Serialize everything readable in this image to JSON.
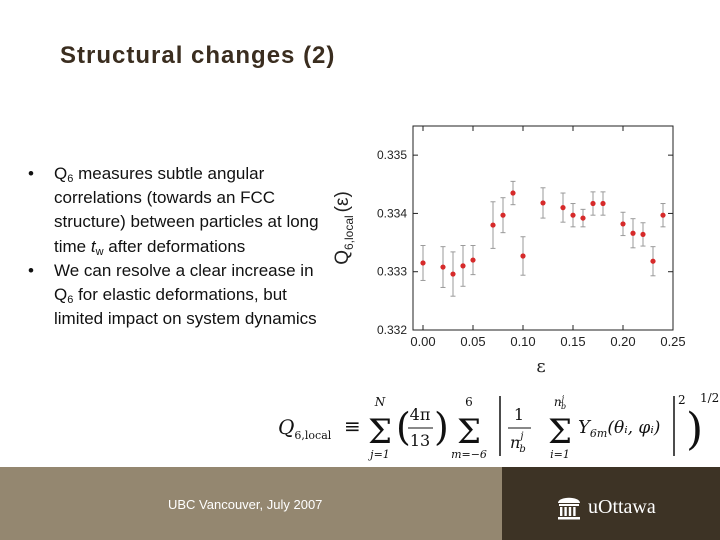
{
  "slide": {
    "title": "Structural changes (2)",
    "bullets": [
      {
        "marker": "•",
        "parts": [
          "Q",
          "6",
          " measures subtle angular correlations (towards an FCC structure) between particles at long time ",
          "t",
          "w",
          " after deformations"
        ]
      },
      {
        "marker": "•",
        "parts": [
          "We can resolve a clear increase in Q",
          "6",
          " for elastic deformations, but limited impact on system dynamics"
        ]
      }
    ]
  },
  "chart_data": {
    "type": "scatter",
    "xlabel": "ε",
    "ylabel_main": "Q",
    "ylabel_sub": "6,local",
    "ylabel_arg": "(ε)",
    "xlim": [
      -0.01,
      0.25
    ],
    "ylim": [
      0.332,
      0.3355
    ],
    "x_ticks": [
      "0.00",
      "0.05",
      "0.10",
      "0.15",
      "0.20",
      "0.25"
    ],
    "y_ticks": [
      "0.332",
      "0.333",
      "0.334",
      "0.335"
    ],
    "marker_color": "#d62a2a",
    "points": [
      {
        "x": 0.0,
        "y": 0.33315,
        "err": 0.0003
      },
      {
        "x": 0.02,
        "y": 0.33308,
        "err": 0.00035
      },
      {
        "x": 0.03,
        "y": 0.33296,
        "err": 0.00038
      },
      {
        "x": 0.04,
        "y": 0.3331,
        "err": 0.00035
      },
      {
        "x": 0.05,
        "y": 0.3332,
        "err": 0.00025
      },
      {
        "x": 0.07,
        "y": 0.3338,
        "err": 0.0004
      },
      {
        "x": 0.08,
        "y": 0.33397,
        "err": 0.0003
      },
      {
        "x": 0.09,
        "y": 0.33435,
        "err": 0.0002
      },
      {
        "x": 0.1,
        "y": 0.33327,
        "err": 0.00033
      },
      {
        "x": 0.12,
        "y": 0.33418,
        "err": 0.00026
      },
      {
        "x": 0.14,
        "y": 0.3341,
        "err": 0.00025
      },
      {
        "x": 0.15,
        "y": 0.33397,
        "err": 0.0002
      },
      {
        "x": 0.16,
        "y": 0.33392,
        "err": 0.00015
      },
      {
        "x": 0.17,
        "y": 0.33417,
        "err": 0.0002
      },
      {
        "x": 0.18,
        "y": 0.33417,
        "err": 0.0002
      },
      {
        "x": 0.2,
        "y": 0.33382,
        "err": 0.0002
      },
      {
        "x": 0.21,
        "y": 0.33366,
        "err": 0.00025
      },
      {
        "x": 0.22,
        "y": 0.33364,
        "err": 0.0002
      },
      {
        "x": 0.23,
        "y": 0.33318,
        "err": 0.00025
      },
      {
        "x": 0.24,
        "y": 0.33397,
        "err": 0.0002
      }
    ]
  },
  "formula": {
    "lhs_main": "Q",
    "lhs_sub": "6,local",
    "equiv": "≡",
    "sigma": "Σ",
    "sum1_top": "N",
    "sum1_bottom": "j=1",
    "coef_num": "4π",
    "coef_den": "13",
    "sum2_top": "6",
    "sum2_bottom": "m=−6",
    "inner_num": "1",
    "n_main": "n",
    "n_sup": "j",
    "n_sub": "b",
    "sum3_bottom": "i=1",
    "y_main": "Y",
    "y_sub": "6m",
    "y_args": "(θᵢ, φᵢ)",
    "outer_power": "2",
    "root_power": "1/2"
  },
  "footer": {
    "event": "UBC Vancouver, July 2007",
    "logo_text": "uOttawa",
    "logo_icon": "university-building-icon"
  }
}
